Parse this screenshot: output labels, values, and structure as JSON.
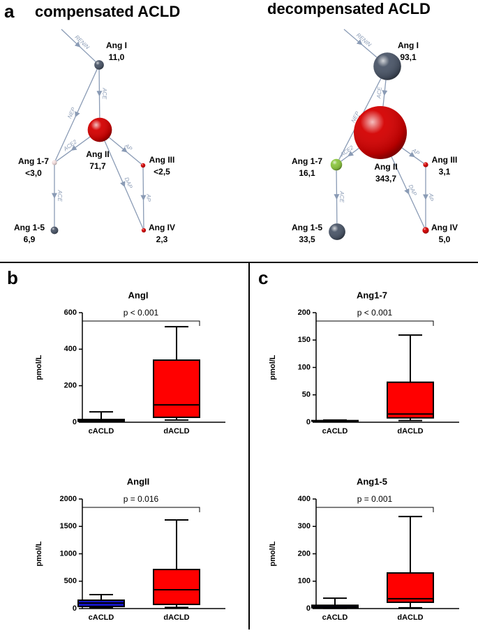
{
  "diagram": {
    "panel_label": "a",
    "networks": [
      {
        "title": "compensated ACLD",
        "nodes": [
          {
            "label": "Ang I",
            "value": 11.0,
            "value_label": "11,0",
            "color": "#4b5668"
          },
          {
            "label": "Ang II",
            "value": 71.7,
            "value_label": "71,7",
            "color": "#d40000"
          },
          {
            "label": "Ang 1-7",
            "value": 3.0,
            "value_label": "<3,0",
            "color": "#f2dcdc"
          },
          {
            "label": "Ang III",
            "value": 2.5,
            "value_label": "<2,5",
            "color": "#d40000"
          },
          {
            "label": "Ang 1-5",
            "value": 6.9,
            "value_label": "6,9",
            "color": "#4b5668"
          },
          {
            "label": "Ang IV",
            "value": 2.3,
            "value_label": "2,3",
            "color": "#d40000"
          }
        ],
        "edge_labels": [
          "RENIN",
          "ACE",
          "NEP",
          "ACE2",
          "AP",
          "DAP",
          "AP",
          "ACE"
        ]
      },
      {
        "title": "decompensated ACLD",
        "nodes": [
          {
            "label": "Ang I",
            "value": 93.1,
            "value_label": "93,1",
            "color": "#4b5668"
          },
          {
            "label": "Ang II",
            "value": 343.7,
            "value_label": "343,7",
            "color": "#d40000"
          },
          {
            "label": "Ang 1-7",
            "value": 16.1,
            "value_label": "16,1",
            "color": "#8cc63f"
          },
          {
            "label": "Ang III",
            "value": 3.1,
            "value_label": "3,1",
            "color": "#d40000"
          },
          {
            "label": "Ang 1-5",
            "value": 33.5,
            "value_label": "33,5",
            "color": "#4b5668"
          },
          {
            "label": "Ang IV",
            "value": 5.0,
            "value_label": "5,0",
            "color": "#d40000"
          }
        ],
        "edge_labels": [
          "RENIN",
          "ACE",
          "NEP",
          "ACE2",
          "AP",
          "DAP",
          "AP",
          "ACE"
        ]
      }
    ]
  },
  "chart_data": [
    {
      "type": "box",
      "panel_label": "b",
      "title": "AngI",
      "ylabel": "pmol/L",
      "annotation": "p < 0.001",
      "categories": [
        "cACLD",
        "dACLD"
      ],
      "ylim": [
        0,
        600
      ],
      "yticks": [
        0,
        200,
        400,
        600
      ],
      "boxes": [
        {
          "min": 2,
          "q1": 5,
          "median": 10,
          "q3": 15,
          "max": 57,
          "color": "#1515c8"
        },
        {
          "min": 12,
          "q1": 27,
          "median": 95,
          "q3": 340,
          "max": 523,
          "color": "#ff0000"
        }
      ]
    },
    {
      "type": "box",
      "title": "AngII",
      "ylabel": "pmol/L",
      "annotation": "p = 0.016",
      "categories": [
        "cACLD",
        "dACLD"
      ],
      "ylim": [
        0,
        2000
      ],
      "yticks": [
        0,
        500,
        1000,
        1500,
        2000
      ],
      "boxes": [
        {
          "min": 20,
          "q1": 38,
          "median": 100,
          "q3": 153,
          "max": 255,
          "color": "#1515c8"
        },
        {
          "min": 20,
          "q1": 76,
          "median": 344,
          "q3": 713,
          "max": 1618,
          "color": "#ff0000"
        }
      ]
    },
    {
      "type": "box",
      "panel_label": "c",
      "title": "Ang1-7",
      "ylabel": "pmol/L",
      "annotation": "p < 0.001",
      "categories": [
        "cACLD",
        "dACLD"
      ],
      "ylim": [
        0,
        200
      ],
      "yticks": [
        0,
        50,
        100,
        150,
        200
      ],
      "boxes": [
        {
          "min": 1.5,
          "q1": 2,
          "median": 2.5,
          "q3": 3,
          "max": 4,
          "color": "#1515c8"
        },
        {
          "min": 3,
          "q1": 8,
          "median": 15,
          "q3": 73,
          "max": 159,
          "color": "#ff0000"
        }
      ]
    },
    {
      "type": "box",
      "title": "Ang1-5",
      "ylabel": "pmol/L",
      "annotation": "p = 0.001",
      "categories": [
        "cACLD",
        "dACLD"
      ],
      "ylim": [
        0,
        400
      ],
      "yticks": [
        0,
        100,
        200,
        300,
        400
      ],
      "boxes": [
        {
          "min": 1,
          "q1": 3,
          "median": 7,
          "q3": 12,
          "max": 38,
          "color": "#1515c8"
        },
        {
          "min": 3,
          "q1": 23,
          "median": 36,
          "q3": 130,
          "max": 336,
          "color": "#ff0000"
        }
      ]
    }
  ]
}
